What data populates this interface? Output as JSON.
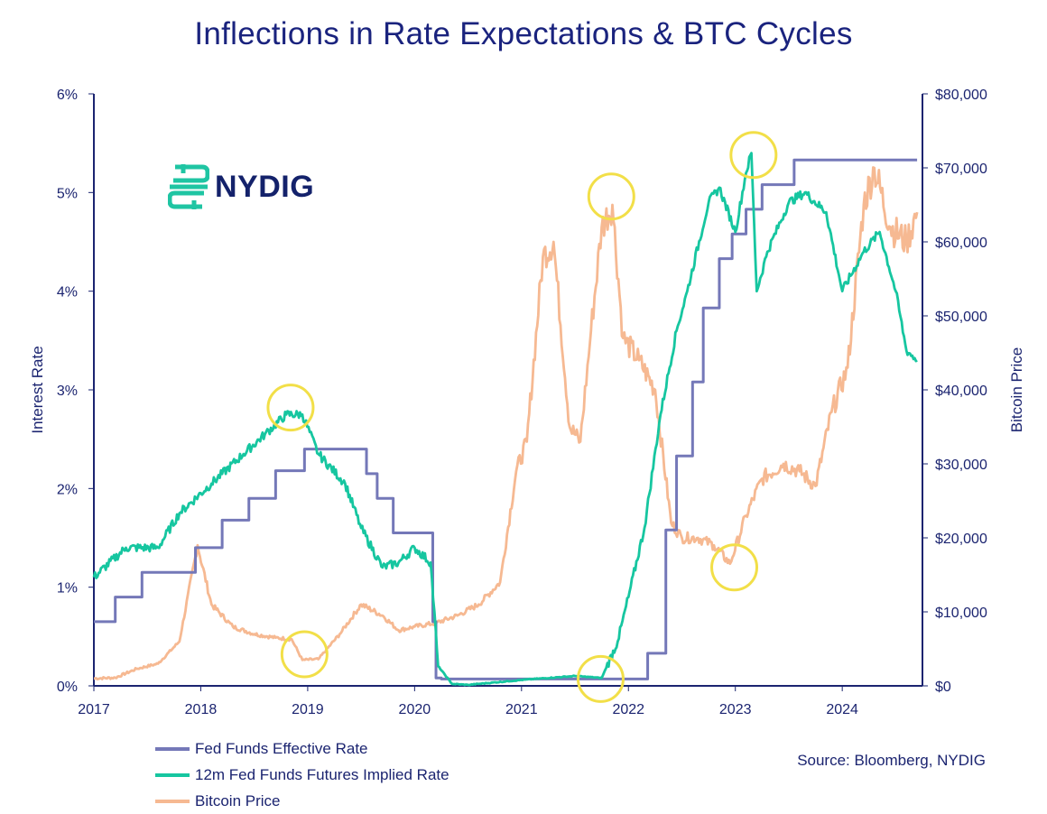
{
  "title": "Inflections in Rate Expectations & BTC Cycles",
  "logo": {
    "name": "NYDIG",
    "color": "#1fc5a3"
  },
  "source": "Source: Bloomberg, NYDIG",
  "legend": [
    {
      "label": "Fed Funds Effective Rate",
      "color": "#7478b8"
    },
    {
      "label": "12m Fed Funds Futures Implied Rate",
      "color": "#16c6a0"
    },
    {
      "label": "Bitcoin Price",
      "color": "#f6b992"
    }
  ],
  "highlight_color": "#f2df48",
  "chart_data": {
    "type": "line",
    "title": "Inflections in Rate Expectations & BTC Cycles",
    "xlabel": "",
    "ylabel": "Interest Rate",
    "y2label": "Bitcoin Price",
    "xlim": [
      2017.0,
      2024.75
    ],
    "ylim": [
      0,
      6
    ],
    "y2lim": [
      0,
      80000
    ],
    "x_ticks": [
      "2017",
      "2018",
      "2019",
      "2020",
      "2021",
      "2022",
      "2023",
      "2024"
    ],
    "y_ticks": [
      "0%",
      "1%",
      "2%",
      "3%",
      "4%",
      "5%",
      "6%"
    ],
    "y2_ticks": [
      "$0",
      "$10,000",
      "$20,000",
      "$30,000",
      "$40,000",
      "$50,000",
      "$60,000",
      "$70,000",
      "$80,000"
    ],
    "series": [
      {
        "name": "Fed Funds Effective Rate",
        "axis": "left",
        "color": "#7478b8",
        "step": true,
        "x": [
          2017.0,
          2017.2,
          2017.45,
          2017.95,
          2018.2,
          2018.45,
          2018.7,
          2018.97,
          2019.55,
          2019.65,
          2019.8,
          2020.17,
          2020.2,
          2020.25,
          2022.18,
          2022.35,
          2022.45,
          2022.6,
          2022.7,
          2022.85,
          2022.97,
          2023.1,
          2023.25,
          2023.55,
          2024.7
        ],
        "values": [
          0.65,
          0.9,
          1.15,
          1.4,
          1.68,
          1.9,
          2.18,
          2.4,
          2.15,
          1.9,
          1.55,
          0.65,
          0.08,
          0.07,
          0.33,
          1.58,
          2.33,
          3.08,
          3.83,
          4.33,
          4.58,
          4.83,
          5.08,
          5.33,
          5.33
        ]
      },
      {
        "name": "12m Fed Funds Futures Implied Rate",
        "axis": "left",
        "color": "#16c6a0",
        "x": [
          2017.0,
          2017.3,
          2017.6,
          2017.8,
          2018.1,
          2018.4,
          2018.6,
          2018.8,
          2018.95,
          2019.1,
          2019.35,
          2019.5,
          2019.7,
          2019.85,
          2020.0,
          2020.15,
          2020.22,
          2020.35,
          2020.5,
          2021.0,
          2021.5,
          2021.75,
          2021.9,
          2022.0,
          2022.15,
          2022.3,
          2022.45,
          2022.55,
          2022.75,
          2022.85,
          2023.0,
          2023.1,
          2023.15,
          2023.2,
          2023.3,
          2023.5,
          2023.65,
          2023.85,
          2024.0,
          2024.2,
          2024.35,
          2024.5,
          2024.6,
          2024.7
        ],
        "values": [
          1.1,
          1.4,
          1.4,
          1.75,
          2.05,
          2.35,
          2.55,
          2.75,
          2.75,
          2.35,
          2.05,
          1.6,
          1.2,
          1.25,
          1.4,
          1.25,
          0.2,
          0.02,
          0.01,
          0.06,
          0.1,
          0.08,
          0.45,
          0.9,
          1.6,
          2.75,
          3.6,
          4.0,
          4.9,
          5.05,
          4.6,
          5.2,
          5.4,
          4.0,
          4.4,
          4.9,
          5.0,
          4.8,
          4.0,
          4.4,
          4.6,
          4.0,
          3.4,
          3.3
        ]
      },
      {
        "name": "Bitcoin Price",
        "axis": "right",
        "color": "#f6b992",
        "x": [
          2017.0,
          2017.2,
          2017.4,
          2017.6,
          2017.8,
          2017.97,
          2018.1,
          2018.3,
          2018.5,
          2018.7,
          2018.85,
          2018.95,
          2019.1,
          2019.3,
          2019.5,
          2019.7,
          2019.85,
          2020.0,
          2020.2,
          2020.4,
          2020.6,
          2020.8,
          2020.95,
          2021.05,
          2021.2,
          2021.3,
          2021.45,
          2021.55,
          2021.65,
          2021.75,
          2021.85,
          2021.95,
          2022.1,
          2022.25,
          2022.4,
          2022.5,
          2022.65,
          2022.8,
          2022.95,
          2023.1,
          2023.25,
          2023.45,
          2023.6,
          2023.75,
          2023.9,
          2024.05,
          2024.2,
          2024.3,
          2024.45,
          2024.6,
          2024.7
        ],
        "values": [
          1000,
          1100,
          2300,
          3000,
          6000,
          19000,
          11000,
          8000,
          7000,
          6500,
          6300,
          3500,
          3600,
          7000,
          11000,
          9500,
          7500,
          8000,
          8500,
          9500,
          11000,
          14000,
          29000,
          33000,
          58000,
          60000,
          35000,
          33000,
          48000,
          62000,
          65000,
          47000,
          44000,
          40000,
          22000,
          20000,
          20000,
          19000,
          16500,
          23000,
          28000,
          30000,
          29000,
          27000,
          37000,
          43000,
          65000,
          70000,
          62000,
          60000,
          64000
        ]
      }
    ],
    "annotations": [
      {
        "type": "circle",
        "target": "12m futures peak",
        "x": 2018.84,
        "y_left": 2.82
      },
      {
        "type": "circle",
        "target": "bitcoin trough",
        "x": 2018.97,
        "y_left": 0.32
      },
      {
        "type": "circle",
        "target": "bitcoin peak",
        "x": 2021.84,
        "y_left": 4.96
      },
      {
        "type": "circle",
        "target": "12m futures trough",
        "x": 2021.74,
        "y_left": 0.07
      },
      {
        "type": "circle",
        "target": "bitcoin trough",
        "x": 2022.99,
        "y_left": 1.2
      },
      {
        "type": "circle",
        "target": "12m futures peak",
        "x": 2023.17,
        "y_left": 5.38
      }
    ]
  }
}
